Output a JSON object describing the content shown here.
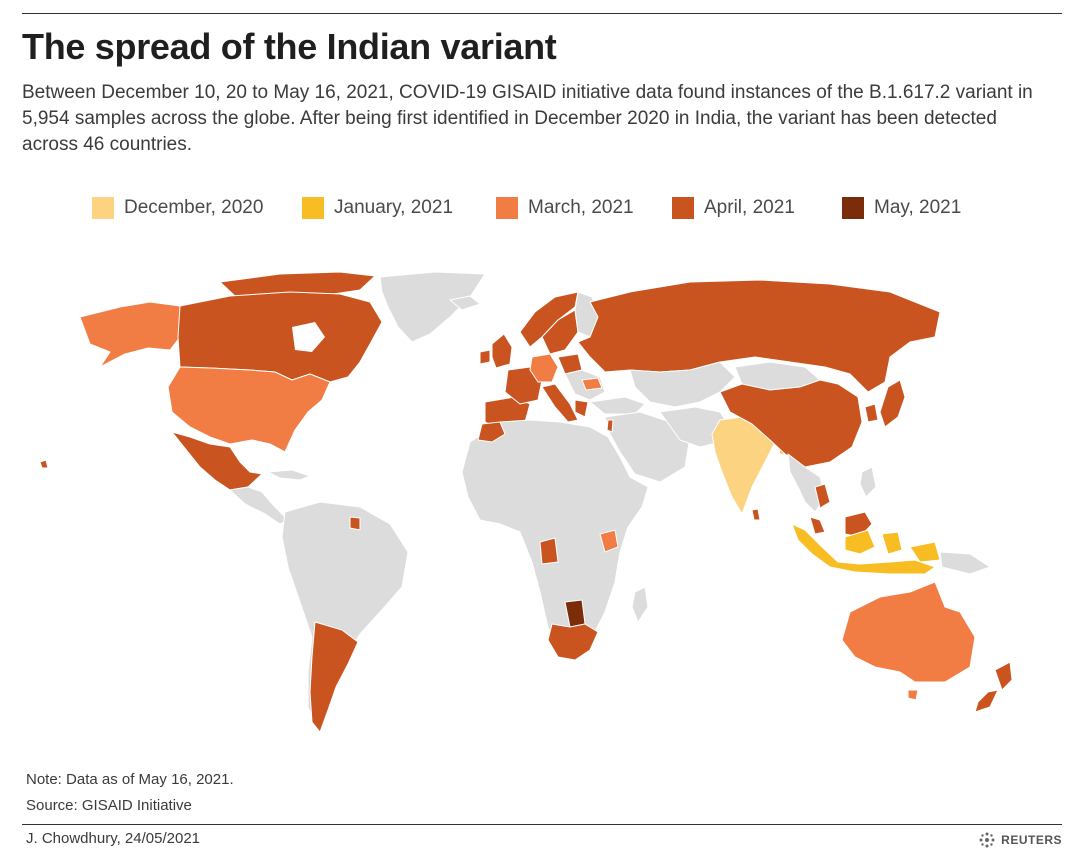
{
  "header": {
    "title": "The spread of the Indian variant",
    "subtitle": "Between December 10, 20 to May 16, 2021, COVID-19 GISAID initiative data found instances of the B.1.617.2 variant in 5,954 samples across the globe. After being first identified in December 2020 in India, the variant has been detected across 46 countries."
  },
  "legend": [
    {
      "label": "December, 2020",
      "color": "#fbd381"
    },
    {
      "label": "January, 2021",
      "color": "#f8bd22"
    },
    {
      "label": "March, 2021",
      "color": "#f27d44"
    },
    {
      "label": "April, 2021",
      "color": "#c9541f"
    },
    {
      "label": "May, 2021",
      "color": "#7a2d08"
    }
  ],
  "map": {
    "base_color": "#dcdcdc",
    "border_color": "#ffffff"
  },
  "footer": {
    "note": "Note: Data as of May 16, 2021.",
    "source": "Source: GISAID Initiative",
    "credit": "J. Chowdhury,  24/05/2021",
    "brand": "REUTERS",
    "brand_icon": "reuters-logo-icon"
  }
}
